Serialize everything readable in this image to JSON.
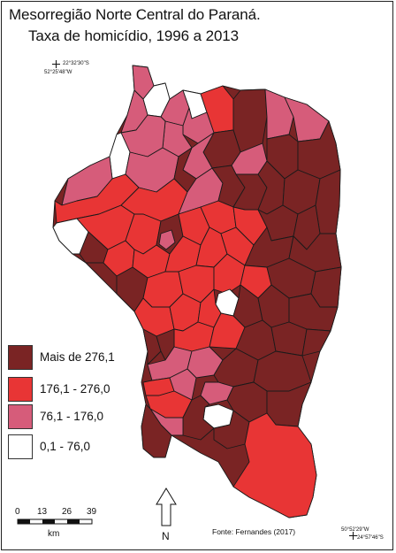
{
  "title_line1": "Mesorregião Norte Central do Paraná.",
  "title_line2": "Taxa de homicídio, 1996 a 2013",
  "coords": {
    "top_left_lat": "22°32'30\"S",
    "top_left_lon": "52°25'48\"W",
    "bottom_right_lon": "50°52'29\"W",
    "bottom_right_lat": "24°57'46\"S"
  },
  "legend": [
    {
      "label": "Mais de 276,1",
      "color": "#7a2424"
    },
    {
      "label": "176,1 - 276,0",
      "color": "#e83535"
    },
    {
      "label": "76,1 - 176,0",
      "color": "#d65c7a"
    },
    {
      "label": "0,1 - 76,0",
      "color": "#ffffff"
    }
  ],
  "scale_bar": {
    "ticks": [
      "0",
      "13",
      "26",
      "39"
    ],
    "unit": "km"
  },
  "north_label": "N",
  "source": "Fonte: Fernandes (2017)",
  "colors": {
    "border": "#1a1a1a",
    "class_high": "#7a2424",
    "class_mid_high": "#e83535",
    "class_mid_low": "#d65c7a",
    "class_low": "#ffffff"
  }
}
